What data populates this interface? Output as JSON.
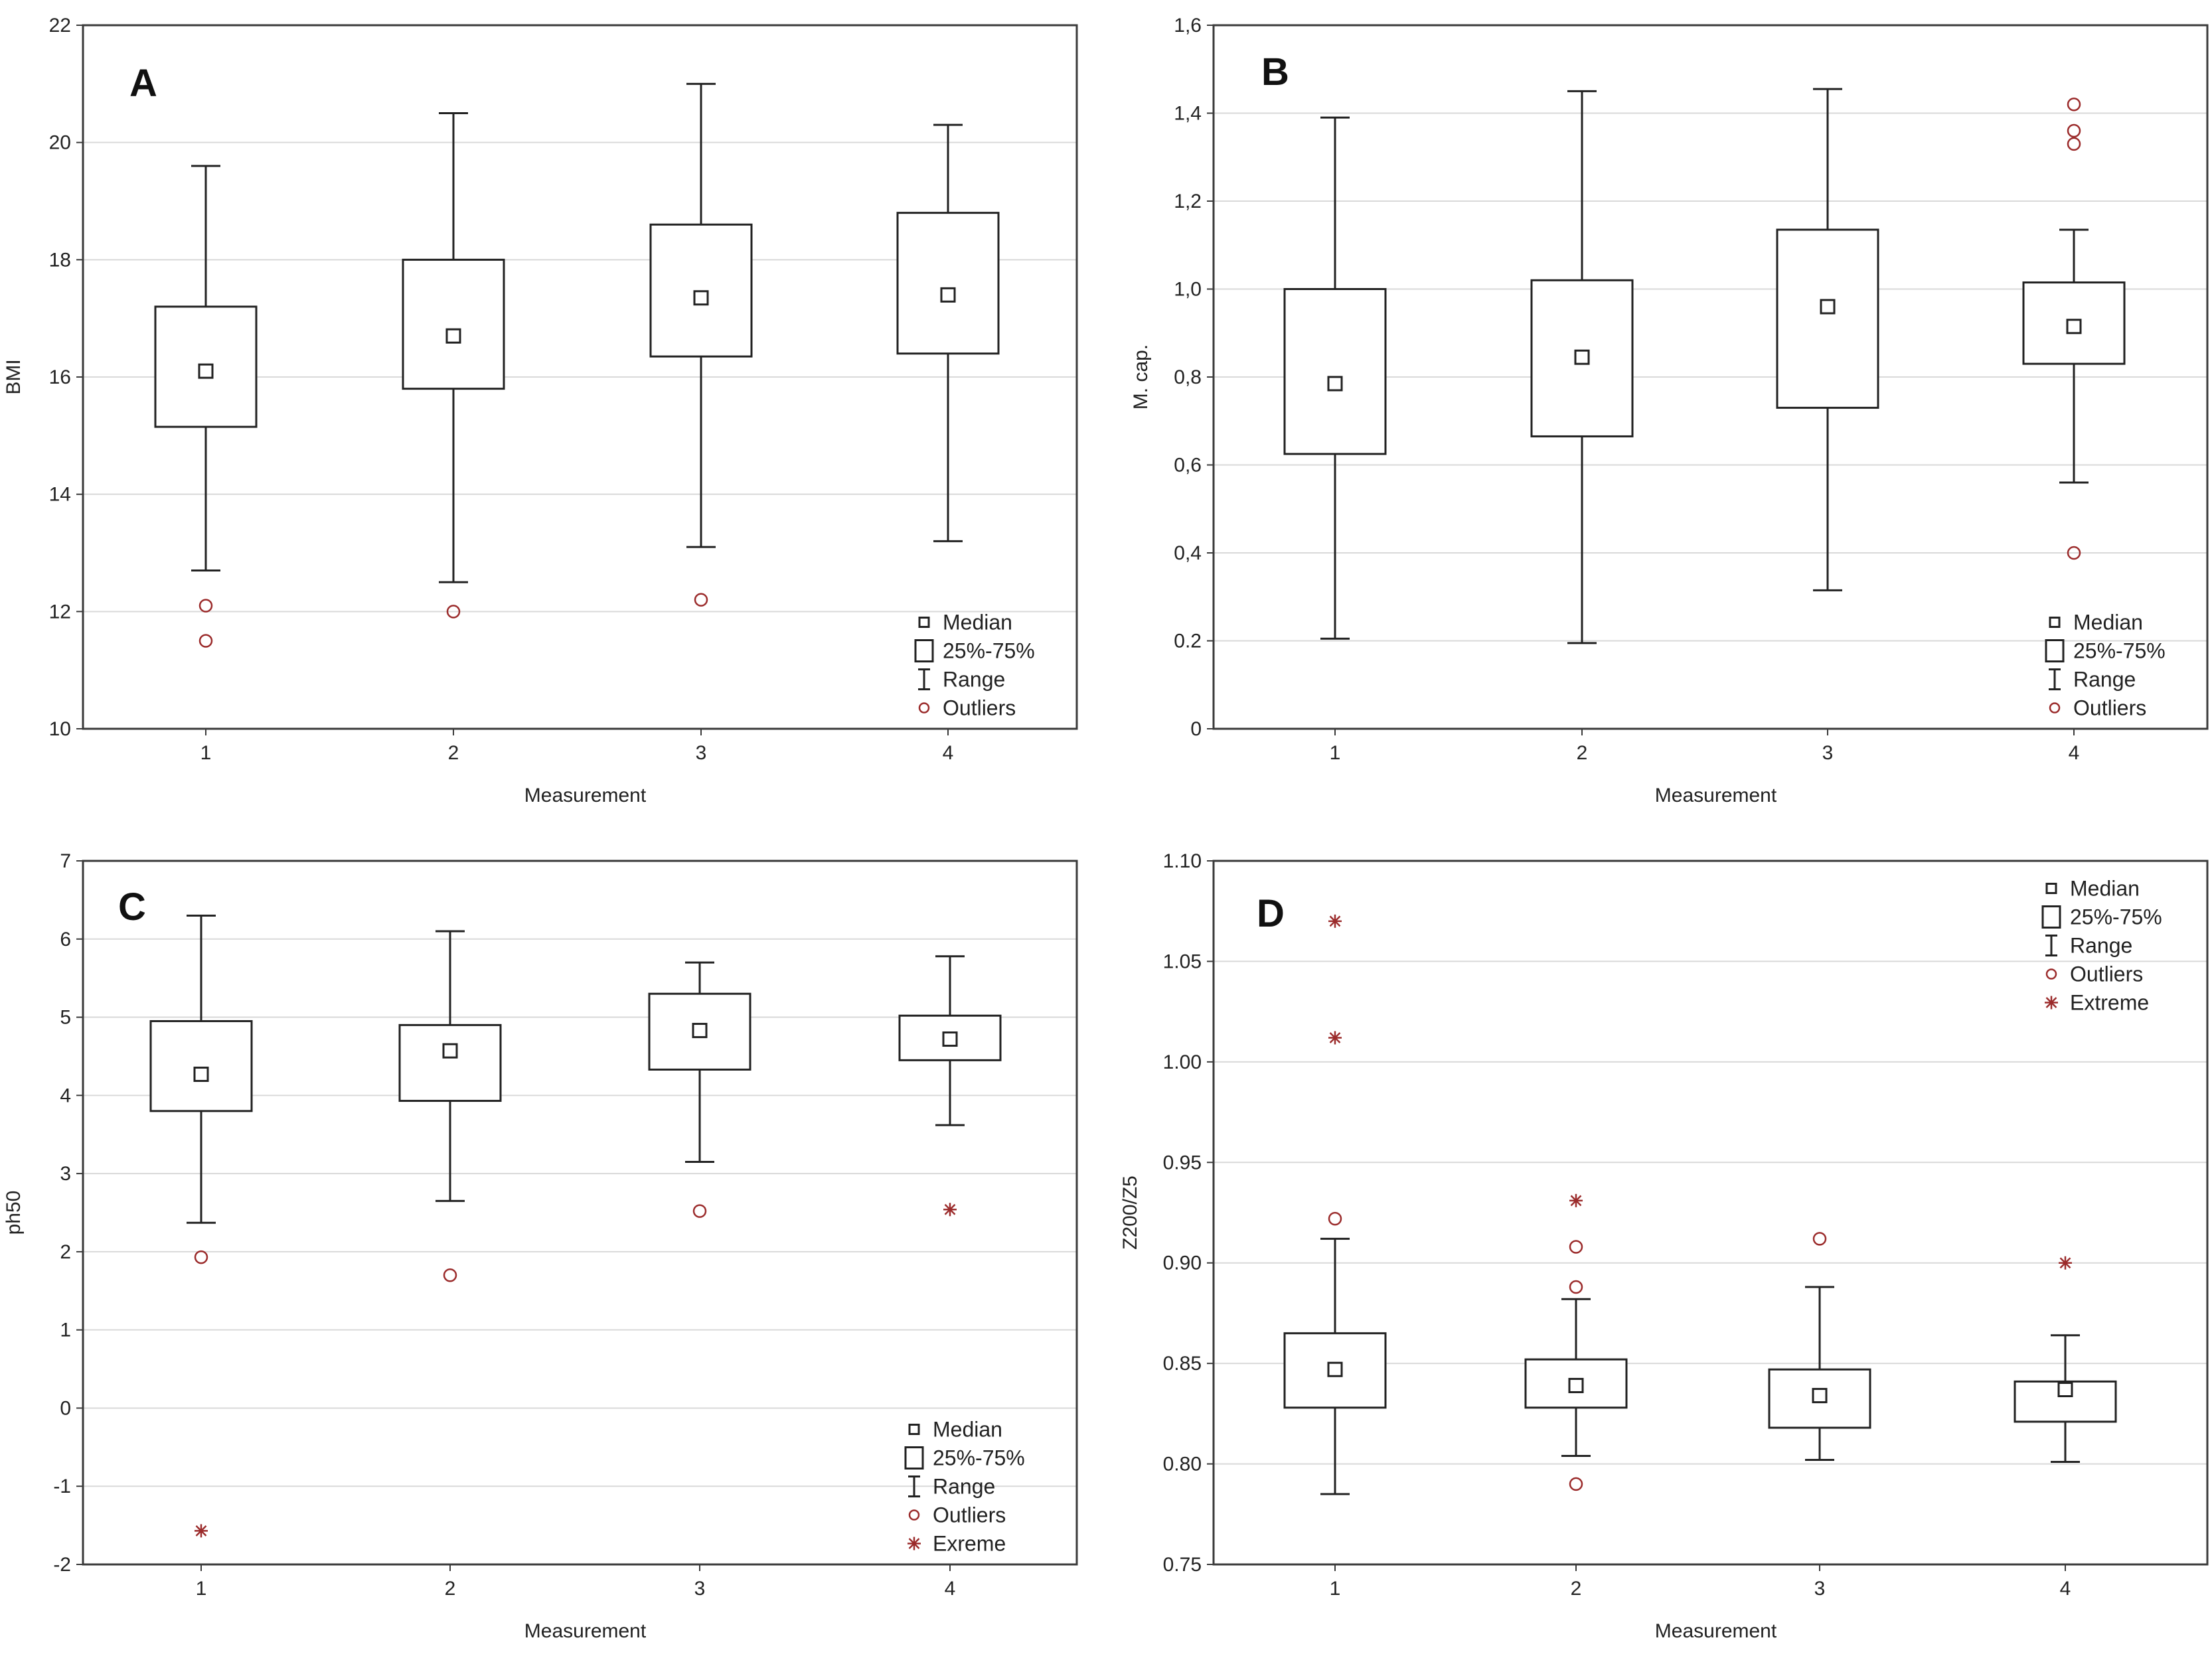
{
  "chart_data": [
    {
      "type": "boxplot",
      "panel": "A",
      "xlabel": "Measurement",
      "ylabel": "BMI",
      "categories": [
        "1",
        "2",
        "3",
        "4"
      ],
      "ylim": [
        10,
        22
      ],
      "yticks": [
        10,
        12,
        14,
        16,
        18,
        20,
        22
      ],
      "ytick_labels": [
        "10",
        "12",
        "14",
        "16",
        "18",
        "20",
        "22"
      ],
      "legend": [
        "Median",
        "25%-75%",
        "Range",
        "Outliers"
      ],
      "legend_position": "bottom-right",
      "boxes": [
        {
          "median": 16.1,
          "q1": 15.15,
          "q3": 17.2,
          "min": 12.7,
          "max": 19.6,
          "outliers": [
            12.1,
            11.5
          ],
          "extremes": []
        },
        {
          "median": 16.7,
          "q1": 15.8,
          "q3": 18.0,
          "min": 12.5,
          "max": 20.5,
          "outliers": [
            12.0
          ],
          "extremes": []
        },
        {
          "median": 17.35,
          "q1": 16.35,
          "q3": 18.6,
          "min": 13.1,
          "max": 21.0,
          "outliers": [
            12.2
          ],
          "extremes": []
        },
        {
          "median": 17.4,
          "q1": 16.4,
          "q3": 18.8,
          "min": 13.2,
          "max": 20.3,
          "outliers": [],
          "extremes": []
        }
      ]
    },
    {
      "type": "boxplot",
      "panel": "B",
      "xlabel": "Measurement",
      "ylabel": "M. cap.",
      "categories": [
        "1",
        "2",
        "3",
        "4"
      ],
      "ylim": [
        0,
        1.6
      ],
      "yticks": [
        0,
        0.2,
        0.4,
        0.6,
        0.8,
        1.0,
        1.2,
        1.4,
        1.6
      ],
      "ytick_labels": [
        "0",
        "0.2",
        "0,4",
        "0,6",
        "0,8",
        "1,0",
        "1,2",
        "1,4",
        "1,6"
      ],
      "legend": [
        "Median",
        "25%-75%",
        "Range",
        "Outliers"
      ],
      "legend_position": "bottom-right",
      "boxes": [
        {
          "median": 0.785,
          "q1": 0.625,
          "q3": 1.0,
          "min": 0.205,
          "max": 1.39,
          "outliers": [],
          "extremes": []
        },
        {
          "median": 0.845,
          "q1": 0.665,
          "q3": 1.02,
          "min": 0.195,
          "max": 1.45,
          "outliers": [],
          "extremes": []
        },
        {
          "median": 0.96,
          "q1": 0.73,
          "q3": 1.135,
          "min": 0.315,
          "max": 1.455,
          "outliers": [],
          "extremes": []
        },
        {
          "median": 0.915,
          "q1": 0.83,
          "q3": 1.015,
          "min": 0.56,
          "max": 1.135,
          "outliers": [
            1.42,
            1.36,
            1.33,
            0.4
          ],
          "extremes": []
        }
      ]
    },
    {
      "type": "boxplot",
      "panel": "C",
      "xlabel": "Measurement",
      "ylabel": "ph50",
      "categories": [
        "1",
        "2",
        "3",
        "4"
      ],
      "ylim": [
        -2,
        7
      ],
      "yticks": [
        -2,
        -1,
        0,
        1,
        2,
        3,
        4,
        5,
        6,
        7
      ],
      "ytick_labels": [
        "-2",
        "-1",
        "0",
        "1",
        "2",
        "3",
        "4",
        "5",
        "6",
        "7"
      ],
      "legend": [
        "Median",
        "25%-75%",
        "Range",
        "Outliers",
        "Exreme"
      ],
      "legend_position": "bottom-right",
      "boxes": [
        {
          "median": 4.27,
          "q1": 3.8,
          "q3": 4.95,
          "min": 2.37,
          "max": 6.3,
          "outliers": [
            1.93
          ],
          "extremes": [
            -1.57
          ]
        },
        {
          "median": 4.57,
          "q1": 3.93,
          "q3": 4.9,
          "min": 2.65,
          "max": 6.1,
          "outliers": [
            1.7
          ],
          "extremes": []
        },
        {
          "median": 4.83,
          "q1": 4.33,
          "q3": 5.3,
          "min": 3.15,
          "max": 5.7,
          "outliers": [
            2.52
          ],
          "extremes": []
        },
        {
          "median": 4.72,
          "q1": 4.45,
          "q3": 5.02,
          "min": 3.62,
          "max": 5.78,
          "outliers": [],
          "extremes": [
            2.54
          ]
        }
      ]
    },
    {
      "type": "boxplot",
      "panel": "D",
      "xlabel": "Measurement",
      "ylabel": "Z200/Z5",
      "categories": [
        "1",
        "2",
        "3",
        "4"
      ],
      "ylim": [
        0.75,
        1.1
      ],
      "yticks": [
        0.75,
        0.8,
        0.85,
        0.9,
        0.95,
        1.0,
        1.05,
        1.1
      ],
      "ytick_labels": [
        "0.75",
        "0.80",
        "0.85",
        "0.90",
        "0.95",
        "1.00",
        "1.05",
        "1.10"
      ],
      "legend": [
        "Median",
        "25%-75%",
        "Range",
        "Outliers",
        "Extreme"
      ],
      "legend_position": "top-right",
      "boxes": [
        {
          "median": 0.847,
          "q1": 0.828,
          "q3": 0.865,
          "min": 0.785,
          "max": 0.912,
          "outliers": [
            0.922
          ],
          "extremes": [
            1.07,
            1.012
          ]
        },
        {
          "median": 0.839,
          "q1": 0.828,
          "q3": 0.852,
          "min": 0.804,
          "max": 0.882,
          "outliers": [
            0.908,
            0.888,
            0.79
          ],
          "extremes": [
            0.931
          ]
        },
        {
          "median": 0.834,
          "q1": 0.818,
          "q3": 0.847,
          "min": 0.802,
          "max": 0.888,
          "outliers": [
            0.912
          ],
          "extremes": []
        },
        {
          "median": 0.837,
          "q1": 0.821,
          "q3": 0.841,
          "min": 0.801,
          "max": 0.864,
          "outliers": [],
          "extremes": [
            0.9
          ]
        }
      ]
    }
  ]
}
